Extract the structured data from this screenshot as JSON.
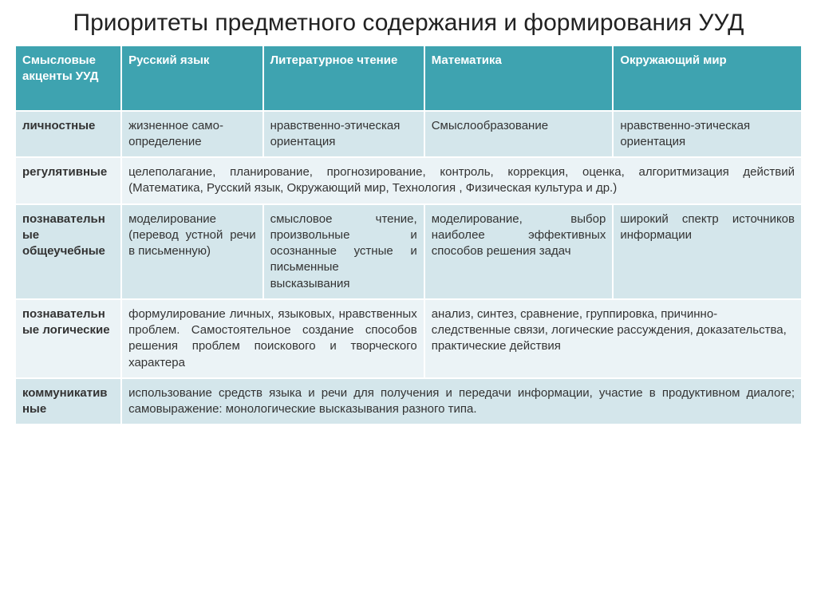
{
  "title": "Приоритеты предметного содержания и формирования УУД",
  "colors": {
    "header_bg": "#3ea3b0",
    "header_fg": "#ffffff",
    "band_a": "#d4e6eb",
    "band_b": "#ebf3f6",
    "border": "#ffffff",
    "text": "#333333"
  },
  "typography": {
    "title_fontsize": 30,
    "cell_fontsize": 15,
    "font_family": "Arial"
  },
  "columns": [
    {
      "key": "c0",
      "label": "Смысловые акценты УУД",
      "width_pct": 13.5
    },
    {
      "key": "c1",
      "label": "Русский язык",
      "width_pct": 18
    },
    {
      "key": "c2",
      "label": "Литературное чтение",
      "width_pct": 20.5
    },
    {
      "key": "c3",
      "label": "Математика",
      "width_pct": 24
    },
    {
      "key": "c4",
      "label": "Окружающий мир",
      "width_pct": 24
    }
  ],
  "rows": [
    {
      "band": "a",
      "label": "личностные",
      "cells": [
        {
          "text": "жизненное само-определение",
          "span": 1,
          "justify": false
        },
        {
          "text": "нравственно-этическая ориентация",
          "span": 1,
          "justify": false
        },
        {
          "text": "Смыслообразование",
          "span": 1,
          "justify": false
        },
        {
          "text": "нравственно-этическая ориентация",
          "span": 1,
          "justify": false
        }
      ]
    },
    {
      "band": "b",
      "label": "регулятивные",
      "cells": [
        {
          "text": "целеполагание, планирование, прогнозирование, контроль, коррекция, оценка, алгоритмизация действий (Математика, Русский язык, Окружающий мир, Технология , Физическая культура и др.)",
          "span": 4,
          "justify": true
        }
      ]
    },
    {
      "band": "a",
      "label": "познавательные общеучебные",
      "cells": [
        {
          "text": "моделирование (перевод устной речи в письменную)",
          "span": 1,
          "justify": true
        },
        {
          "text": "смысловое чтение, произвольные и осознанные устные и письменные высказывания",
          "span": 1,
          "justify": true
        },
        {
          "text": "моделирование, выбор наиболее эффективных способов решения задач",
          "span": 1,
          "justify": true
        },
        {
          "text": "широкий спектр источников информации",
          "span": 1,
          "justify": true
        }
      ]
    },
    {
      "band": "b",
      "label": "познавательные логические",
      "cells": [
        {
          "text": "формулирование личных, языковых, нравственных проблем. Самостоятельное создание способов решения проблем поискового и творческого характера",
          "span": 2,
          "justify": true
        },
        {
          "text": "анализ, синтез, сравнение, группировка, причинно-следственные связи, логические рассуждения, доказательства, практические действия",
          "span": 2,
          "justify": false
        }
      ]
    },
    {
      "band": "a",
      "label": "коммуникативные",
      "cells": [
        {
          "text": "использование средств языка и речи для получения и передачи информации, участие в продуктивном диалоге; самовыражение: монологические высказывания разного типа.",
          "span": 4,
          "justify": true
        }
      ]
    }
  ]
}
